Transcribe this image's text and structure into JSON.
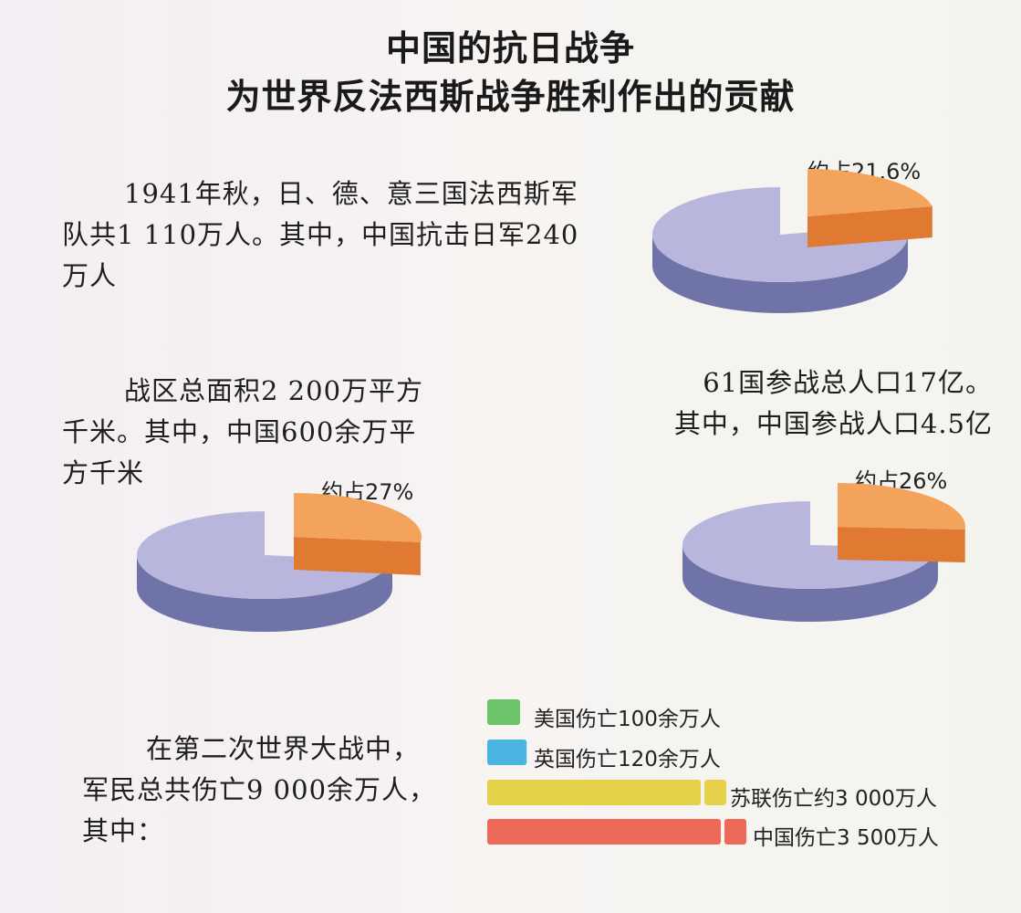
{
  "title": {
    "line1": "中国的抗日战争",
    "line2": "为世界反法西斯战争胜利作出的贡献"
  },
  "texts": {
    "troops": "1941年秋，日、德、意三国法西斯军\n队共1 110万人。其中，中国抗击日军240\n万人",
    "area": "战区总面积2 200万平方\n千米。其中，中国600余万平\n方千米",
    "population": "61国参战总人口17亿。\n其中，中国参战人口4.5亿",
    "casualties": "在第二次世界大战中，\n军民总共伤亡9 000余万人，\n其中："
  },
  "colors": {
    "pie_main": "#b8b6dc",
    "pie_main_side": "#6f73a8",
    "pie_slice": "#f3a35c",
    "pie_slice_side": "#e07a32",
    "us": "#6cc36a",
    "uk": "#49b4e0",
    "ussr": "#e6d24a",
    "china": "#ee6a58"
  },
  "chart_data": [
    {
      "type": "pie",
      "label": "约占21.6%",
      "values": [
        21.6,
        78.4
      ]
    },
    {
      "type": "pie",
      "label": "约占27%",
      "values": [
        27,
        73
      ]
    },
    {
      "type": "pie",
      "label": "约占26%",
      "values": [
        26,
        74
      ]
    },
    {
      "type": "bar",
      "categories": [
        "美国伤亡100余万人",
        "英国伤亡120余万人",
        "苏联伤亡约3 000万人",
        "中国伤亡3 500万人"
      ],
      "values": [
        100,
        120,
        3000,
        3500
      ],
      "unit": "万人",
      "colors": [
        "#6cc36a",
        "#49b4e0",
        "#e6d24a",
        "#ee6a58"
      ]
    }
  ]
}
